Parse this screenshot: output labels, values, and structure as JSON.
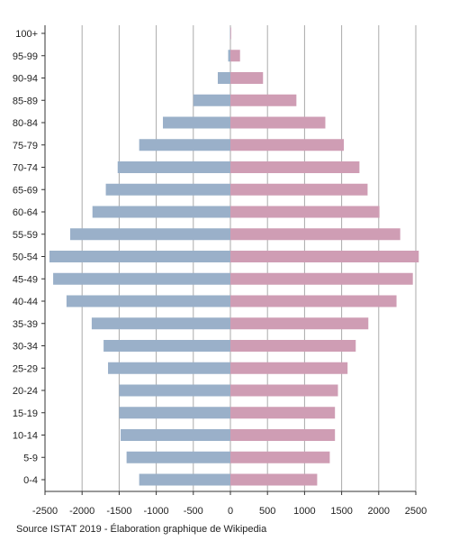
{
  "chart_data": {
    "type": "bar",
    "orientation": "horizontal",
    "layout": "population-pyramid",
    "categories": [
      "100+",
      "95-99",
      "90-94",
      "85-89",
      "80-84",
      "75-79",
      "70-74",
      "65-69",
      "60-64",
      "55-59",
      "50-54",
      "45-49",
      "40-44",
      "35-39",
      "30-34",
      "25-29",
      "20-24",
      "15-19",
      "10-14",
      "5-9",
      "0-4"
    ],
    "series": [
      {
        "side": "left",
        "color": "#9ab0c9",
        "values": [
          5,
          30,
          170,
          500,
          910,
          1230,
          1520,
          1680,
          1860,
          2160,
          2440,
          2390,
          2210,
          1870,
          1710,
          1650,
          1500,
          1500,
          1480,
          1400,
          1230
        ]
      },
      {
        "side": "right",
        "color": "#cf9db4",
        "values": [
          10,
          130,
          440,
          890,
          1280,
          1530,
          1740,
          1850,
          2010,
          2290,
          2540,
          2460,
          2240,
          1860,
          1690,
          1580,
          1450,
          1410,
          1410,
          1340,
          1170
        ]
      }
    ],
    "xlim": [
      -2500,
      2500
    ],
    "xticks": [
      "-2500",
      "-2000",
      "-1500",
      "-1000",
      "-500",
      "0",
      "500",
      "1000",
      "1500",
      "2000",
      "2500"
    ],
    "grid": "vertical",
    "xlabel": "",
    "ylabel": ""
  },
  "source_text": "Source ISTAT 2019 - Élaboration graphique de Wikipedia"
}
